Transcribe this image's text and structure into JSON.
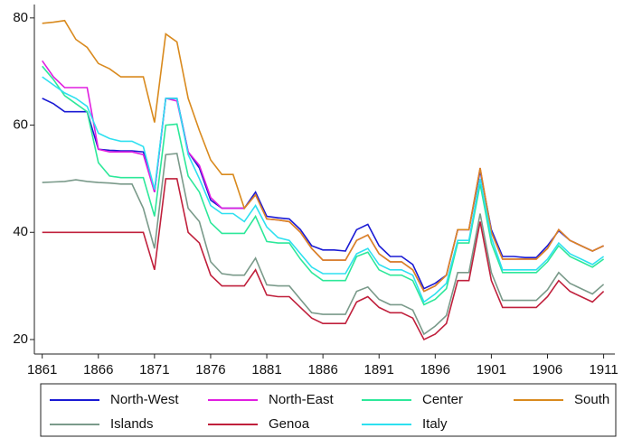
{
  "chart_data": {
    "type": "line",
    "x": [
      1861,
      1862,
      1863,
      1864,
      1865,
      1866,
      1867,
      1868,
      1869,
      1870,
      1871,
      1872,
      1873,
      1874,
      1875,
      1876,
      1877,
      1878,
      1879,
      1880,
      1881,
      1882,
      1883,
      1884,
      1885,
      1886,
      1887,
      1888,
      1889,
      1890,
      1891,
      1892,
      1893,
      1894,
      1895,
      1896,
      1897,
      1898,
      1899,
      1900,
      1901,
      1902,
      1903,
      1904,
      1905,
      1906,
      1907,
      1908,
      1909,
      1910,
      1911
    ],
    "series": [
      {
        "name": "North-West",
        "color": "#1a1ad4",
        "values": [
          65,
          64,
          62.5,
          62.5,
          62.5,
          55.5,
          55.3,
          55.2,
          55.2,
          55,
          47.5,
          65,
          65,
          55,
          52,
          46,
          44.5,
          44.5,
          44.5,
          47.5,
          43,
          42.7,
          42.5,
          40.5,
          37.5,
          36.7,
          36.7,
          36.5,
          40.5,
          41.5,
          37.5,
          35.5,
          35.5,
          34,
          29.5,
          30.5,
          32,
          40.5,
          40.5,
          51.5,
          40.5,
          35.5,
          35.5,
          35.3,
          35.3,
          37.5,
          40.3,
          38.5,
          37.5,
          36.5,
          37.5
        ]
      },
      {
        "name": "North-East",
        "color": "#e01ee0",
        "values": [
          72,
          69,
          67,
          67,
          67,
          55.5,
          55,
          55,
          55,
          54.5,
          47.5,
          65,
          64.5,
          55,
          52.5,
          46.5,
          44.5,
          44.5,
          44.5,
          47,
          42.5,
          42.3,
          42,
          40,
          37,
          34.8,
          34.8,
          34.8,
          38.5,
          39.5,
          36,
          34.5,
          34.5,
          33,
          29,
          30,
          32,
          40.5,
          40.5,
          52,
          40,
          35,
          35,
          35,
          35,
          37,
          40.5,
          38.5,
          37.5,
          36.5,
          37.5
        ]
      },
      {
        "name": "Center",
        "color": "#2de89a",
        "values": [
          71,
          68.5,
          65.5,
          64,
          62.5,
          53,
          50.5,
          50.2,
          50.2,
          50.2,
          43,
          60,
          60.2,
          50.5,
          47.5,
          41.8,
          39.8,
          39.8,
          39.8,
          43,
          38.3,
          38,
          38,
          35,
          32.5,
          31,
          31,
          31,
          35.5,
          36.3,
          33,
          32,
          32,
          31,
          26.5,
          27.5,
          29.5,
          38,
          38,
          49,
          38,
          32.5,
          32.5,
          32.5,
          32.5,
          34.5,
          37.5,
          35.5,
          34.5,
          33.5,
          35
        ]
      },
      {
        "name": "South",
        "color": "#d98a1e",
        "values": [
          79,
          79.2,
          79.5,
          76,
          74.5,
          71.5,
          70.5,
          69,
          69,
          69,
          60.5,
          77,
          75.5,
          65,
          59,
          53.5,
          50.8,
          50.8,
          44.5,
          47,
          42.5,
          42.3,
          42,
          40,
          37,
          34.8,
          34.8,
          34.8,
          38.5,
          39.5,
          36,
          34.5,
          34.5,
          33,
          29,
          30,
          32,
          40.5,
          40.5,
          52,
          40,
          35,
          35,
          35,
          35,
          37,
          40.5,
          38.5,
          37.5,
          36.5,
          37.5
        ]
      },
      {
        "name": "Islands",
        "color": "#7a9a8a",
        "values": [
          49.3,
          49.4,
          49.5,
          49.8,
          49.5,
          49.3,
          49.2,
          49,
          49,
          44.5,
          37,
          54.5,
          54.7,
          44.5,
          42,
          34.5,
          32.3,
          32,
          32,
          35.2,
          30.2,
          30,
          30,
          27.5,
          25,
          24.7,
          24.7,
          24.7,
          29,
          29.8,
          27.5,
          26.5,
          26.5,
          25.5,
          21,
          22.5,
          24.5,
          32.5,
          32.5,
          43.5,
          32.5,
          27.3,
          27.3,
          27.3,
          27.3,
          29.3,
          32.5,
          30.5,
          29.5,
          28.5,
          30.3
        ]
      },
      {
        "name": "Genoa",
        "color": "#c0203c",
        "values": [
          40,
          40,
          40,
          40,
          40,
          40,
          40,
          40,
          40,
          40,
          33,
          50,
          50,
          40,
          38,
          32,
          30,
          30,
          30,
          33,
          28.3,
          28,
          28,
          26,
          24,
          23,
          23,
          23,
          27,
          28,
          26,
          25,
          25,
          24,
          20,
          21,
          23,
          31,
          31,
          42,
          31,
          26,
          26,
          26,
          26,
          28,
          31,
          29,
          28,
          27,
          29
        ]
      },
      {
        "name": "Italy",
        "color": "#2ee0f0",
        "values": [
          69,
          67.5,
          66,
          65,
          63.5,
          58.5,
          57.5,
          57,
          57,
          56,
          48,
          65,
          65,
          54.5,
          50,
          45,
          43.5,
          43.5,
          42,
          45,
          41,
          39,
          38.5,
          36,
          33.5,
          32.3,
          32.3,
          32.3,
          36,
          37,
          34,
          33,
          33,
          32,
          27,
          28.5,
          30.5,
          38.5,
          38.5,
          50,
          39,
          33,
          33,
          33,
          33,
          35,
          38,
          36,
          35,
          34,
          35.5
        ]
      }
    ],
    "xlim": [
      1860.3,
      1912
    ],
    "xticks": [
      1861,
      1866,
      1871,
      1876,
      1881,
      1886,
      1891,
      1896,
      1901,
      1906,
      1911
    ],
    "ylim": [
      17.3,
      82.5
    ],
    "yticks": [
      20,
      40,
      60,
      80
    ],
    "grid": false
  }
}
